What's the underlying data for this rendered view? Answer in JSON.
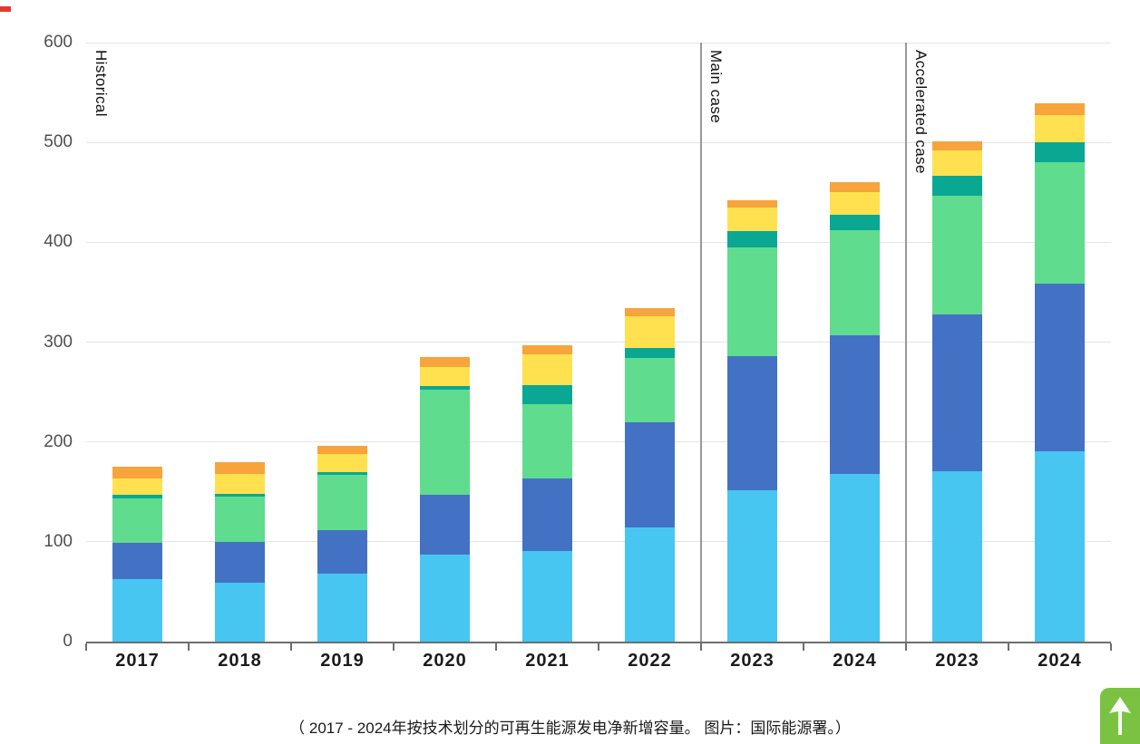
{
  "page": {
    "caption": "（ 2017 - 2024年按技术划分的可再生能源发电净新增容量。 图片：国际能源署。）"
  },
  "chart_data": {
    "type": "bar",
    "stacked": true,
    "title": "",
    "xlabel": "",
    "ylabel": "",
    "ylim": [
      0,
      600
    ],
    "yticks": [
      0,
      100,
      200,
      300,
      400,
      500,
      600
    ],
    "grid": "horizontal",
    "legend": "none",
    "categories": [
      "2017",
      "2018",
      "2019",
      "2020",
      "2021",
      "2022",
      "2023",
      "2024",
      "2023",
      "2024"
    ],
    "sections": [
      {
        "label": "Historical",
        "start": 0,
        "end": 5
      },
      {
        "label": "Main case",
        "start": 6,
        "end": 7
      },
      {
        "label": "Accelerated case",
        "start": 8,
        "end": 9
      }
    ],
    "series": [
      {
        "name": "light-blue-segment",
        "color": "#47c6f1",
        "values": [
          63,
          59,
          68,
          87,
          91,
          114,
          152,
          168,
          171,
          191
        ]
      },
      {
        "name": "blue-segment",
        "color": "#4372c4",
        "values": [
          36,
          41,
          44,
          60,
          72,
          106,
          134,
          139,
          157,
          168
        ]
      },
      {
        "name": "green-segment",
        "color": "#5fdc8e",
        "values": [
          44,
          45,
          55,
          105,
          75,
          64,
          109,
          105,
          119,
          121
        ]
      },
      {
        "name": "teal-segment",
        "color": "#0aa793",
        "values": [
          4,
          3,
          3,
          4,
          19,
          10,
          16,
          16,
          20,
          20
        ]
      },
      {
        "name": "yellow-segment",
        "color": "#ffe14f",
        "values": [
          16,
          20,
          18,
          19,
          31,
          32,
          24,
          22,
          25,
          27
        ]
      },
      {
        "name": "orange-segment",
        "color": "#f6a43b",
        "values": [
          12,
          12,
          8,
          10,
          9,
          8,
          7,
          10,
          9,
          12
        ]
      }
    ],
    "totals": [
      175,
      180,
      196,
      285,
      297,
      334,
      442,
      460,
      501,
      539
    ]
  }
}
